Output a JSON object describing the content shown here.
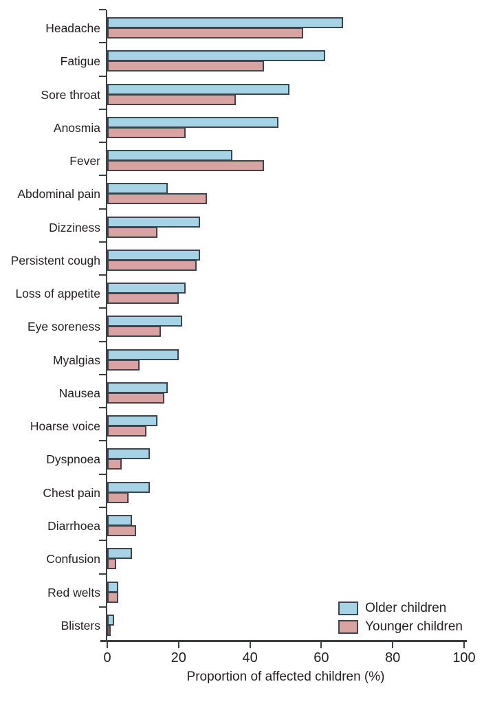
{
  "chart_data": {
    "type": "bar",
    "orientation": "horizontal",
    "title": "",
    "xlabel": "Proportion of affected children (%)",
    "ylabel": "",
    "xlim": [
      0,
      100
    ],
    "x_ticks": [
      0,
      20,
      40,
      60,
      80,
      100
    ],
    "grid": false,
    "legend_position": "bottom-right",
    "categories": [
      "Headache",
      "Fatigue",
      "Sore throat",
      "Anosmia",
      "Fever",
      "Abdominal pain",
      "Dizziness",
      "Persistent cough",
      "Loss of appetite",
      "Eye soreness",
      "Myalgias",
      "Nausea",
      "Hoarse voice",
      "Dyspnoea",
      "Chest pain",
      "Diarrhoea",
      "Confusion",
      "Red welts",
      "Blisters"
    ],
    "series": [
      {
        "name": "Older children",
        "color": "#a7d3e6",
        "values": [
          66,
          61,
          51,
          48,
          35,
          17,
          26,
          26,
          22,
          21,
          20,
          17,
          14,
          12,
          12,
          7,
          7,
          3,
          2
        ]
      },
      {
        "name": "Younger children",
        "color": "#d9a3a1",
        "values": [
          55,
          44,
          36,
          22,
          44,
          28,
          14,
          25,
          20,
          15,
          9,
          16,
          11,
          4,
          6,
          8,
          2.5,
          3,
          1
        ]
      }
    ],
    "bar_border_color": "#3e444b",
    "axis_color": "#3a3f45"
  }
}
